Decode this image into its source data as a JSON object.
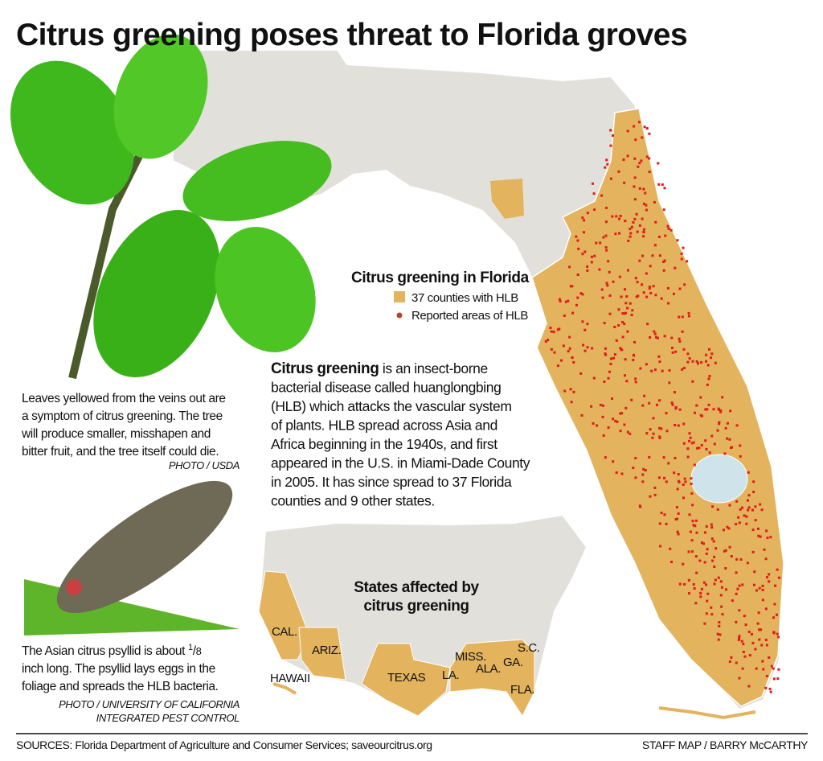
{
  "title": "Citrus greening poses threat to Florida groves",
  "leaf_caption": {
    "lines": [
      "Leaves yellowed from the veins out are",
      "a symptom of citrus greening. The tree",
      "will produce smaller, misshapen and",
      "bitter fruit, and the tree itself could die."
    ],
    "credit": "PHOTO / USDA"
  },
  "psyllid_caption": {
    "first_line_start": "The Asian citrus psyllid is about",
    "fraction_numerator": "1",
    "fraction_denominator": "8",
    "lines": [
      "inch long. The psyllid lays eggs in the",
      "foliage and spreads the HLB bacteria."
    ],
    "credit": [
      "PHOTO / UNIVERSITY OF CALIFORNIA",
      "INTEGRATED PEST CONTROL"
    ]
  },
  "florida_legend": {
    "title": "Citrus greening in Florida",
    "items": [
      "37 counties with HLB",
      "Reported areas of HLB"
    ]
  },
  "description": {
    "lead": "Citrus greening",
    "lines": [
      "is an insect-borne",
      "bacterial disease called huanglongbing",
      "(HLB) which attacks the vascular system",
      "of plants. HLB spread across Asia and",
      "Africa beginning in the 1940s, and first",
      "appeared in the U.S. in Miami-Dade County",
      "in 2005. It has since spread to 37 Florida",
      "counties and 9 other states."
    ]
  },
  "us_map": {
    "title": [
      "States affected by",
      "citrus greening"
    ],
    "labels": [
      "CAL.",
      "ARIZ.",
      "TEXAS",
      "LA.",
      "MISS.",
      "ALA.",
      "GA.",
      "S.C.",
      "FLA.",
      "HAWAII"
    ]
  },
  "footer": {
    "sources": "SOURCES: Florida Department of Agriculture and Consumer Services; saveourcitrus.org",
    "credit": "STAFF MAP / BARRY McCARTHY"
  }
}
